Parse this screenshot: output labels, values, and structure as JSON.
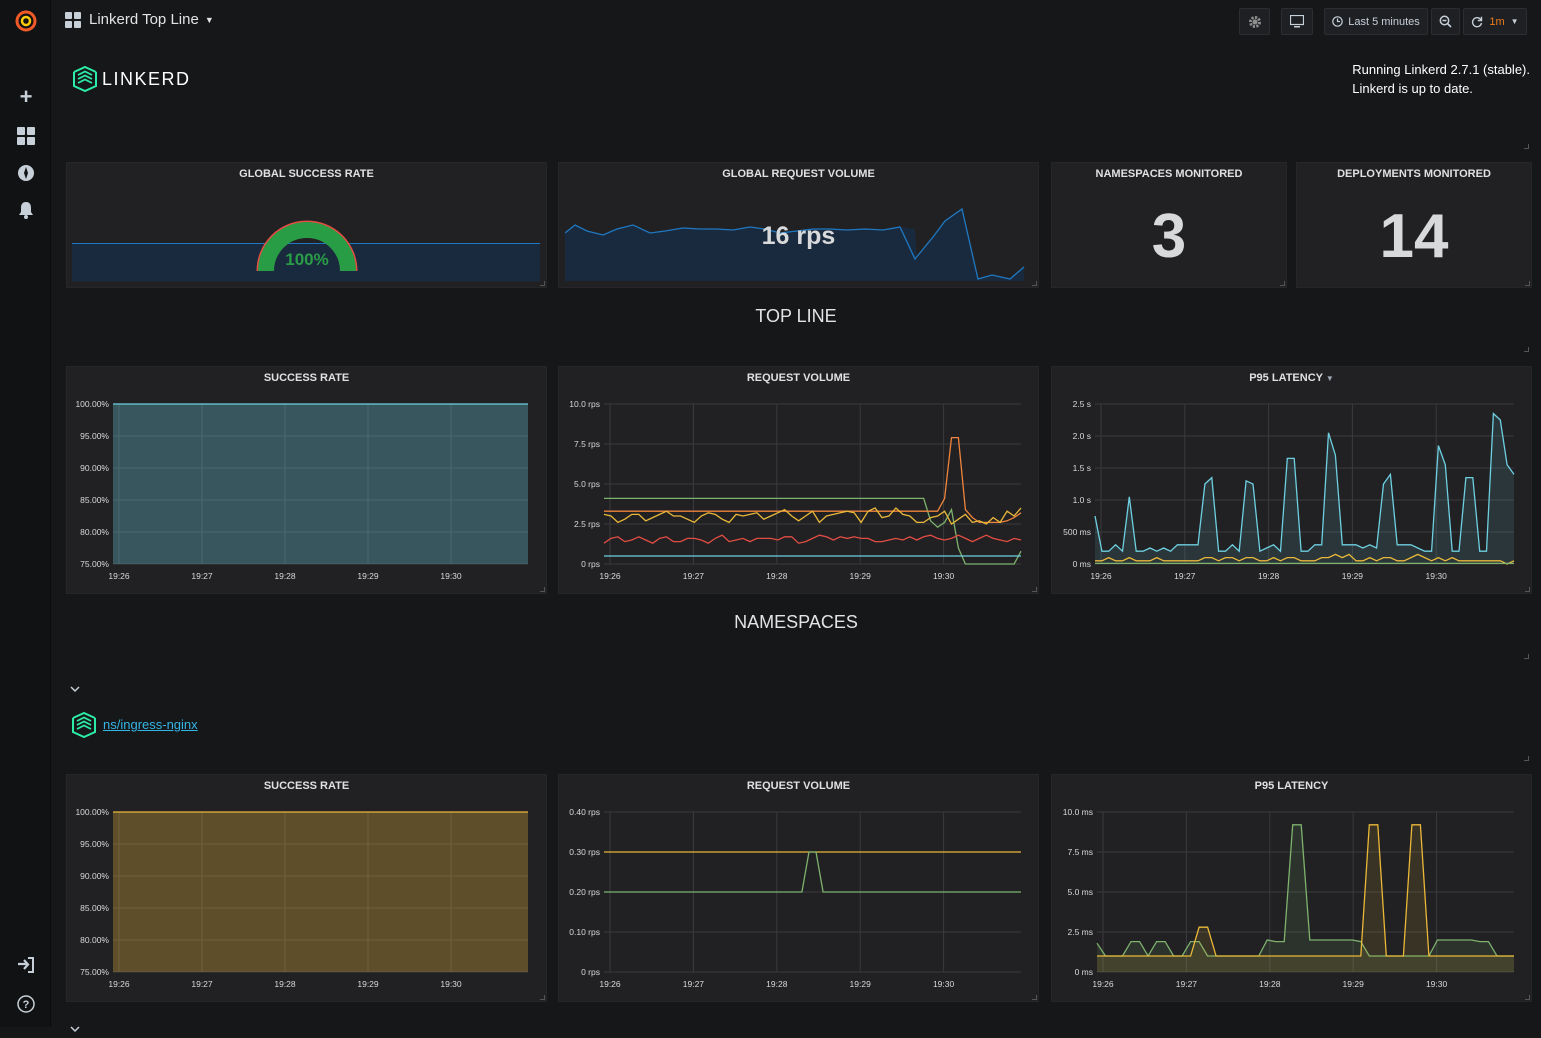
{
  "dashboard": {
    "title": "Linkerd Top Line"
  },
  "toolbar": {
    "time_range": "Last 5 minutes",
    "refresh": "1m"
  },
  "header": {
    "brand": "LINKERD",
    "status_line1": "Running Linkerd 2.7.1 (stable).",
    "status_line2": "Linkerd is up to date."
  },
  "stats": {
    "success": {
      "title": "GLOBAL SUCCESS RATE",
      "value": "100%",
      "fraction": 1.0
    },
    "volume": {
      "title": "GLOBAL REQUEST VOLUME",
      "value": "16 rps"
    },
    "namespaces": {
      "title": "NAMESPACES MONITORED",
      "value": "3"
    },
    "deployments": {
      "title": "DEPLOYMENTS MONITORED",
      "value": "14"
    }
  },
  "rows": {
    "topline": "TOP LINE",
    "namespaces": "NAMESPACES"
  },
  "namespace": {
    "link": "ns/ingress-nginx"
  },
  "colors": {
    "green": "#7eb26d",
    "yellow": "#eab839",
    "cyan": "#6ed0e0",
    "orange": "#ef843c",
    "red": "#e24d42",
    "blue": "#1f78c1"
  },
  "chart_data": [
    {
      "type": "area",
      "title": "SUCCESS RATE",
      "x_ticks": [
        "19:26",
        "19:27",
        "19:28",
        "19:29",
        "19:30"
      ],
      "y_ticks": [
        "100.00%",
        "95.00%",
        "90.00%",
        "85.00%",
        "80.00%",
        "75.00%"
      ],
      "ylim": [
        75,
        100
      ],
      "series": [
        {
          "color": "#6ed0e0",
          "values": [
            100,
            100,
            100,
            100,
            100,
            100
          ]
        }
      ]
    },
    {
      "type": "line",
      "title": "REQUEST VOLUME",
      "x_ticks": [
        "19:26",
        "19:27",
        "19:28",
        "19:29",
        "19:30"
      ],
      "y_ticks": [
        "10.0 rps",
        "7.5 rps",
        "5.0 rps",
        "2.5 rps",
        "0 rps"
      ],
      "ylim": [
        0,
        10
      ],
      "series": [
        {
          "color": "#7eb26d",
          "values": [
            4.1,
            4.1,
            4.1,
            4.1,
            4.1,
            4.1,
            4.1,
            4.1,
            4.1,
            4.1,
            4.1,
            4.1,
            4.1,
            4.1,
            4.1,
            4.1,
            4.1,
            4.1,
            4.1,
            4.1,
            4.1,
            4.1,
            4.1,
            4.1,
            4.1,
            4.1,
            4.1,
            4.1,
            4.1,
            4.1,
            4.1,
            4.1,
            4.1,
            4.1,
            4.1,
            4.1,
            4.1,
            4.1,
            4.1,
            4.1,
            4.1,
            4.1,
            4.1,
            4.1,
            4.1,
            4.1,
            4.1,
            2.7,
            2.3,
            2.6,
            3.4,
            1.0,
            0.0,
            0.0,
            0.0,
            0.0,
            0.0,
            0.0,
            0.0,
            0.0,
            0.8
          ]
        },
        {
          "color": "#ef843c",
          "values": [
            3.3,
            3.3,
            3.3,
            3.3,
            3.3,
            3.3,
            3.3,
            3.3,
            3.3,
            3.3,
            3.3,
            3.3,
            3.3,
            3.3,
            3.3,
            3.3,
            3.3,
            3.3,
            3.3,
            3.3,
            3.3,
            3.3,
            3.3,
            3.3,
            3.3,
            3.3,
            3.3,
            3.3,
            3.3,
            3.3,
            3.3,
            3.3,
            3.3,
            3.3,
            3.3,
            3.3,
            3.3,
            3.3,
            3.3,
            3.3,
            3.3,
            3.3,
            3.3,
            3.3,
            3.3,
            3.3,
            3.3,
            3.3,
            3.3,
            4.1,
            7.9,
            7.9,
            3.4,
            2.9,
            2.6,
            2.6,
            2.6,
            2.6,
            2.7,
            2.9,
            3.2
          ]
        },
        {
          "color": "#eab839",
          "values": [
            3.1,
            3.0,
            2.6,
            2.8,
            3.1,
            3.1,
            2.7,
            2.9,
            3.1,
            3.3,
            3.0,
            3.0,
            2.8,
            2.6,
            3.0,
            3.2,
            3.1,
            2.8,
            2.6,
            3.1,
            3.0,
            3.1,
            3.2,
            2.8,
            3.0,
            3.2,
            3.4,
            3.0,
            2.7,
            3.0,
            3.3,
            2.6,
            3.0,
            3.1,
            3.2,
            3.3,
            3.2,
            2.6,
            3.3,
            3.5,
            2.9,
            3.0,
            3.5,
            3.1,
            3.0,
            2.6,
            2.6,
            2.9,
            3.0,
            3.3,
            2.5,
            2.8,
            3.1,
            2.6,
            2.7,
            2.5,
            2.9,
            2.6,
            3.3,
            3.0,
            3.5
          ]
        },
        {
          "color": "#e24d42",
          "values": [
            1.3,
            1.6,
            1.7,
            1.4,
            1.5,
            1.7,
            1.5,
            1.3,
            1.6,
            1.7,
            1.4,
            1.4,
            1.6,
            1.6,
            1.5,
            1.3,
            1.6,
            1.8,
            1.4,
            1.5,
            1.6,
            1.4,
            1.6,
            1.6,
            1.6,
            1.5,
            1.7,
            1.7,
            1.3,
            1.4,
            1.6,
            1.8,
            1.7,
            1.5,
            1.7,
            1.6,
            1.7,
            1.6,
            1.6,
            1.4,
            1.4,
            1.5,
            1.6,
            1.5,
            1.7,
            1.5,
            1.7,
            1.8,
            1.6,
            1.5,
            1.6,
            1.8,
            1.6,
            1.4,
            1.6,
            1.8,
            1.6,
            1.5,
            1.4,
            1.6,
            1.5
          ]
        },
        {
          "color": "#6ed0e0",
          "values": [
            0.5,
            0.5,
            0.5,
            0.5,
            0.5,
            0.5,
            0.5,
            0.5,
            0.5,
            0.5,
            0.5,
            0.5,
            0.5,
            0.5,
            0.5,
            0.5,
            0.5,
            0.5,
            0.5,
            0.5,
            0.5,
            0.5,
            0.5,
            0.5,
            0.5,
            0.5,
            0.5,
            0.5,
            0.5,
            0.5,
            0.5,
            0.5,
            0.5,
            0.5,
            0.5,
            0.5,
            0.5,
            0.5,
            0.5,
            0.5,
            0.5,
            0.5,
            0.5,
            0.5,
            0.5,
            0.5,
            0.5,
            0.5,
            0.5,
            0.5,
            0.5,
            0.5,
            0.5,
            0.5,
            0.5,
            0.5,
            0.5,
            0.5,
            0.5,
            0.5,
            0.5
          ]
        }
      ]
    },
    {
      "type": "line",
      "title": "P95 LATENCY",
      "x_ticks": [
        "19:26",
        "19:27",
        "19:28",
        "19:29",
        "19:30"
      ],
      "y_ticks": [
        "2.5 s",
        "2.0 s",
        "1.5 s",
        "1.0 s",
        "500 ms",
        "0 ms"
      ],
      "ylim": [
        0,
        2.5
      ],
      "series": [
        {
          "color": "#6ed0e0",
          "fill": true,
          "values": [
            0.75,
            0.2,
            0.2,
            0.3,
            0.2,
            1.05,
            0.2,
            0.2,
            0.25,
            0.2,
            0.25,
            0.2,
            0.3,
            0.3,
            0.3,
            0.3,
            1.25,
            1.35,
            0.2,
            0.2,
            0.3,
            0.2,
            1.3,
            1.25,
            0.2,
            0.25,
            0.3,
            0.2,
            1.65,
            1.65,
            0.2,
            0.2,
            0.3,
            0.3,
            2.05,
            1.7,
            0.3,
            0.3,
            0.3,
            0.25,
            0.3,
            0.25,
            1.25,
            1.4,
            0.3,
            0.3,
            0.3,
            0.25,
            0.2,
            0.2,
            1.85,
            1.55,
            0.2,
            0.2,
            1.35,
            1.35,
            0.2,
            0.2,
            2.35,
            2.25,
            1.55,
            1.4
          ]
        },
        {
          "color": "#eab839",
          "values": [
            0.05,
            0.05,
            0.1,
            0.05,
            0.05,
            0.1,
            0.05,
            0.05,
            0.05,
            0.1,
            0.05,
            0.05,
            0.05,
            0.05,
            0.05,
            0.05,
            0.1,
            0.1,
            0.05,
            0.1,
            0.1,
            0.05,
            0.1,
            0.1,
            0.05,
            0.05,
            0.1,
            0.05,
            0.1,
            0.1,
            0.05,
            0.05,
            0.05,
            0.1,
            0.1,
            0.15,
            0.1,
            0.15,
            0.05,
            0.05,
            0.1,
            0.05,
            0.1,
            0.1,
            0.05,
            0.05,
            0.1,
            0.15,
            0.1,
            0.05,
            0.1,
            0.05,
            0.1,
            0.05,
            0.05,
            0.05,
            0.05,
            0.05,
            0.05,
            0.05,
            0.0,
            0.05
          ]
        },
        {
          "color": "#7eb26d",
          "values": [
            0.01,
            0.01,
            0.01,
            0.01,
            0.01,
            0.01,
            0.01,
            0.01,
            0.01,
            0.01,
            0.01,
            0.01,
            0.01,
            0.01,
            0.01,
            0.01,
            0.01,
            0.01,
            0.01,
            0.01,
            0.01,
            0.01,
            0.01,
            0.01,
            0.01,
            0.01,
            0.01,
            0.01,
            0.01,
            0.01,
            0.01,
            0.01,
            0.01,
            0.01,
            0.01,
            0.01,
            0.01,
            0.01,
            0.01,
            0.01,
            0.01,
            0.01,
            0.01,
            0.01,
            0.01,
            0.01,
            0.01,
            0.01,
            0.01,
            0.01,
            0.01,
            0.01,
            0.01,
            0.01,
            0.01,
            0.01,
            0.01,
            0.01,
            0.01,
            0.01,
            0.01,
            0.01
          ]
        }
      ]
    },
    {
      "type": "area",
      "title": "SUCCESS RATE",
      "x_ticks": [
        "19:26",
        "19:27",
        "19:28",
        "19:29",
        "19:30"
      ],
      "y_ticks": [
        "100.00%",
        "95.00%",
        "90.00%",
        "85.00%",
        "80.00%",
        "75.00%"
      ],
      "ylim": [
        75,
        100
      ],
      "series": [
        {
          "color": "#eab839",
          "values": [
            100,
            100,
            100,
            100,
            100,
            100
          ]
        }
      ]
    },
    {
      "type": "line",
      "title": "REQUEST VOLUME",
      "x_ticks": [
        "19:26",
        "19:27",
        "19:28",
        "19:29",
        "19:30"
      ],
      "y_ticks": [
        "0.40 rps",
        "0.30 rps",
        "0.20 rps",
        "0.10 rps",
        "0 rps"
      ],
      "ylim": [
        0,
        0.4
      ],
      "series": [
        {
          "color": "#eab839",
          "values": [
            0.3,
            0.3,
            0.3,
            0.3,
            0.3,
            0.3,
            0.3,
            0.3,
            0.3,
            0.3,
            0.3,
            0.3,
            0.3,
            0.3,
            0.3,
            0.3,
            0.3,
            0.3,
            0.3,
            0.3,
            0.3,
            0.3,
            0.3,
            0.3,
            0.3,
            0.3,
            0.3,
            0.3,
            0.3,
            0.3,
            0.3,
            0.3,
            0.3,
            0.3,
            0.3,
            0.3,
            0.3,
            0.3,
            0.3,
            0.3,
            0.3,
            0.3,
            0.3,
            0.3,
            0.3,
            0.3,
            0.3,
            0.3,
            0.3,
            0.3,
            0.3,
            0.3,
            0.3,
            0.3,
            0.3,
            0.3,
            0.3,
            0.3,
            0.3,
            0.3
          ]
        },
        {
          "color": "#7eb26d",
          "values": [
            0.2,
            0.2,
            0.2,
            0.2,
            0.2,
            0.2,
            0.2,
            0.2,
            0.2,
            0.2,
            0.2,
            0.2,
            0.2,
            0.2,
            0.2,
            0.2,
            0.2,
            0.2,
            0.2,
            0.2,
            0.2,
            0.2,
            0.2,
            0.2,
            0.2,
            0.2,
            0.2,
            0.2,
            0.2,
            0.3,
            0.3,
            0.2,
            0.2,
            0.2,
            0.2,
            0.2,
            0.2,
            0.2,
            0.2,
            0.2,
            0.2,
            0.2,
            0.2,
            0.2,
            0.2,
            0.2,
            0.2,
            0.2,
            0.2,
            0.2,
            0.2,
            0.2,
            0.2,
            0.2,
            0.2,
            0.2,
            0.2,
            0.2,
            0.2,
            0.2
          ]
        }
      ]
    },
    {
      "type": "line",
      "title": "P95 LATENCY",
      "x_ticks": [
        "19:26",
        "19:27",
        "19:28",
        "19:29",
        "19:30"
      ],
      "y_ticks": [
        "10.0 ms",
        "7.5 ms",
        "5.0 ms",
        "2.5 ms",
        "0 ms"
      ],
      "ylim": [
        0,
        10
      ],
      "series": [
        {
          "color": "#7eb26d",
          "fill": true,
          "values": [
            1.8,
            1.0,
            1.0,
            1.0,
            1.9,
            1.9,
            1.0,
            1.9,
            1.9,
            1.0,
            1.0,
            1.9,
            1.9,
            1.0,
            1.0,
            1.0,
            1.0,
            1.0,
            1.0,
            1.0,
            2.0,
            1.9,
            1.9,
            9.2,
            9.2,
            2.0,
            2.0,
            2.0,
            2.0,
            2.0,
            2.0,
            1.9,
            1.0,
            1.0,
            1.0,
            1.0,
            1.0,
            1.0,
            1.0,
            1.0,
            2.0,
            2.0,
            2.0,
            2.0,
            2.0,
            1.9,
            1.9,
            1.0,
            1.0,
            1.0
          ]
        },
        {
          "color": "#eab839",
          "fill": true,
          "values": [
            1.0,
            1.0,
            1.0,
            1.0,
            1.0,
            1.0,
            1.0,
            1.0,
            1.0,
            1.0,
            1.0,
            1.0,
            2.8,
            2.8,
            1.0,
            1.0,
            1.0,
            1.0,
            1.0,
            1.0,
            1.0,
            1.0,
            1.0,
            1.0,
            1.0,
            1.0,
            1.0,
            1.0,
            1.0,
            1.0,
            1.0,
            1.0,
            9.2,
            9.2,
            1.0,
            1.0,
            1.0,
            9.2,
            9.2,
            1.0,
            1.0,
            1.0,
            1.0,
            1.0,
            1.0,
            1.0,
            1.0,
            1.0,
            1.0,
            1.0
          ]
        }
      ]
    }
  ]
}
